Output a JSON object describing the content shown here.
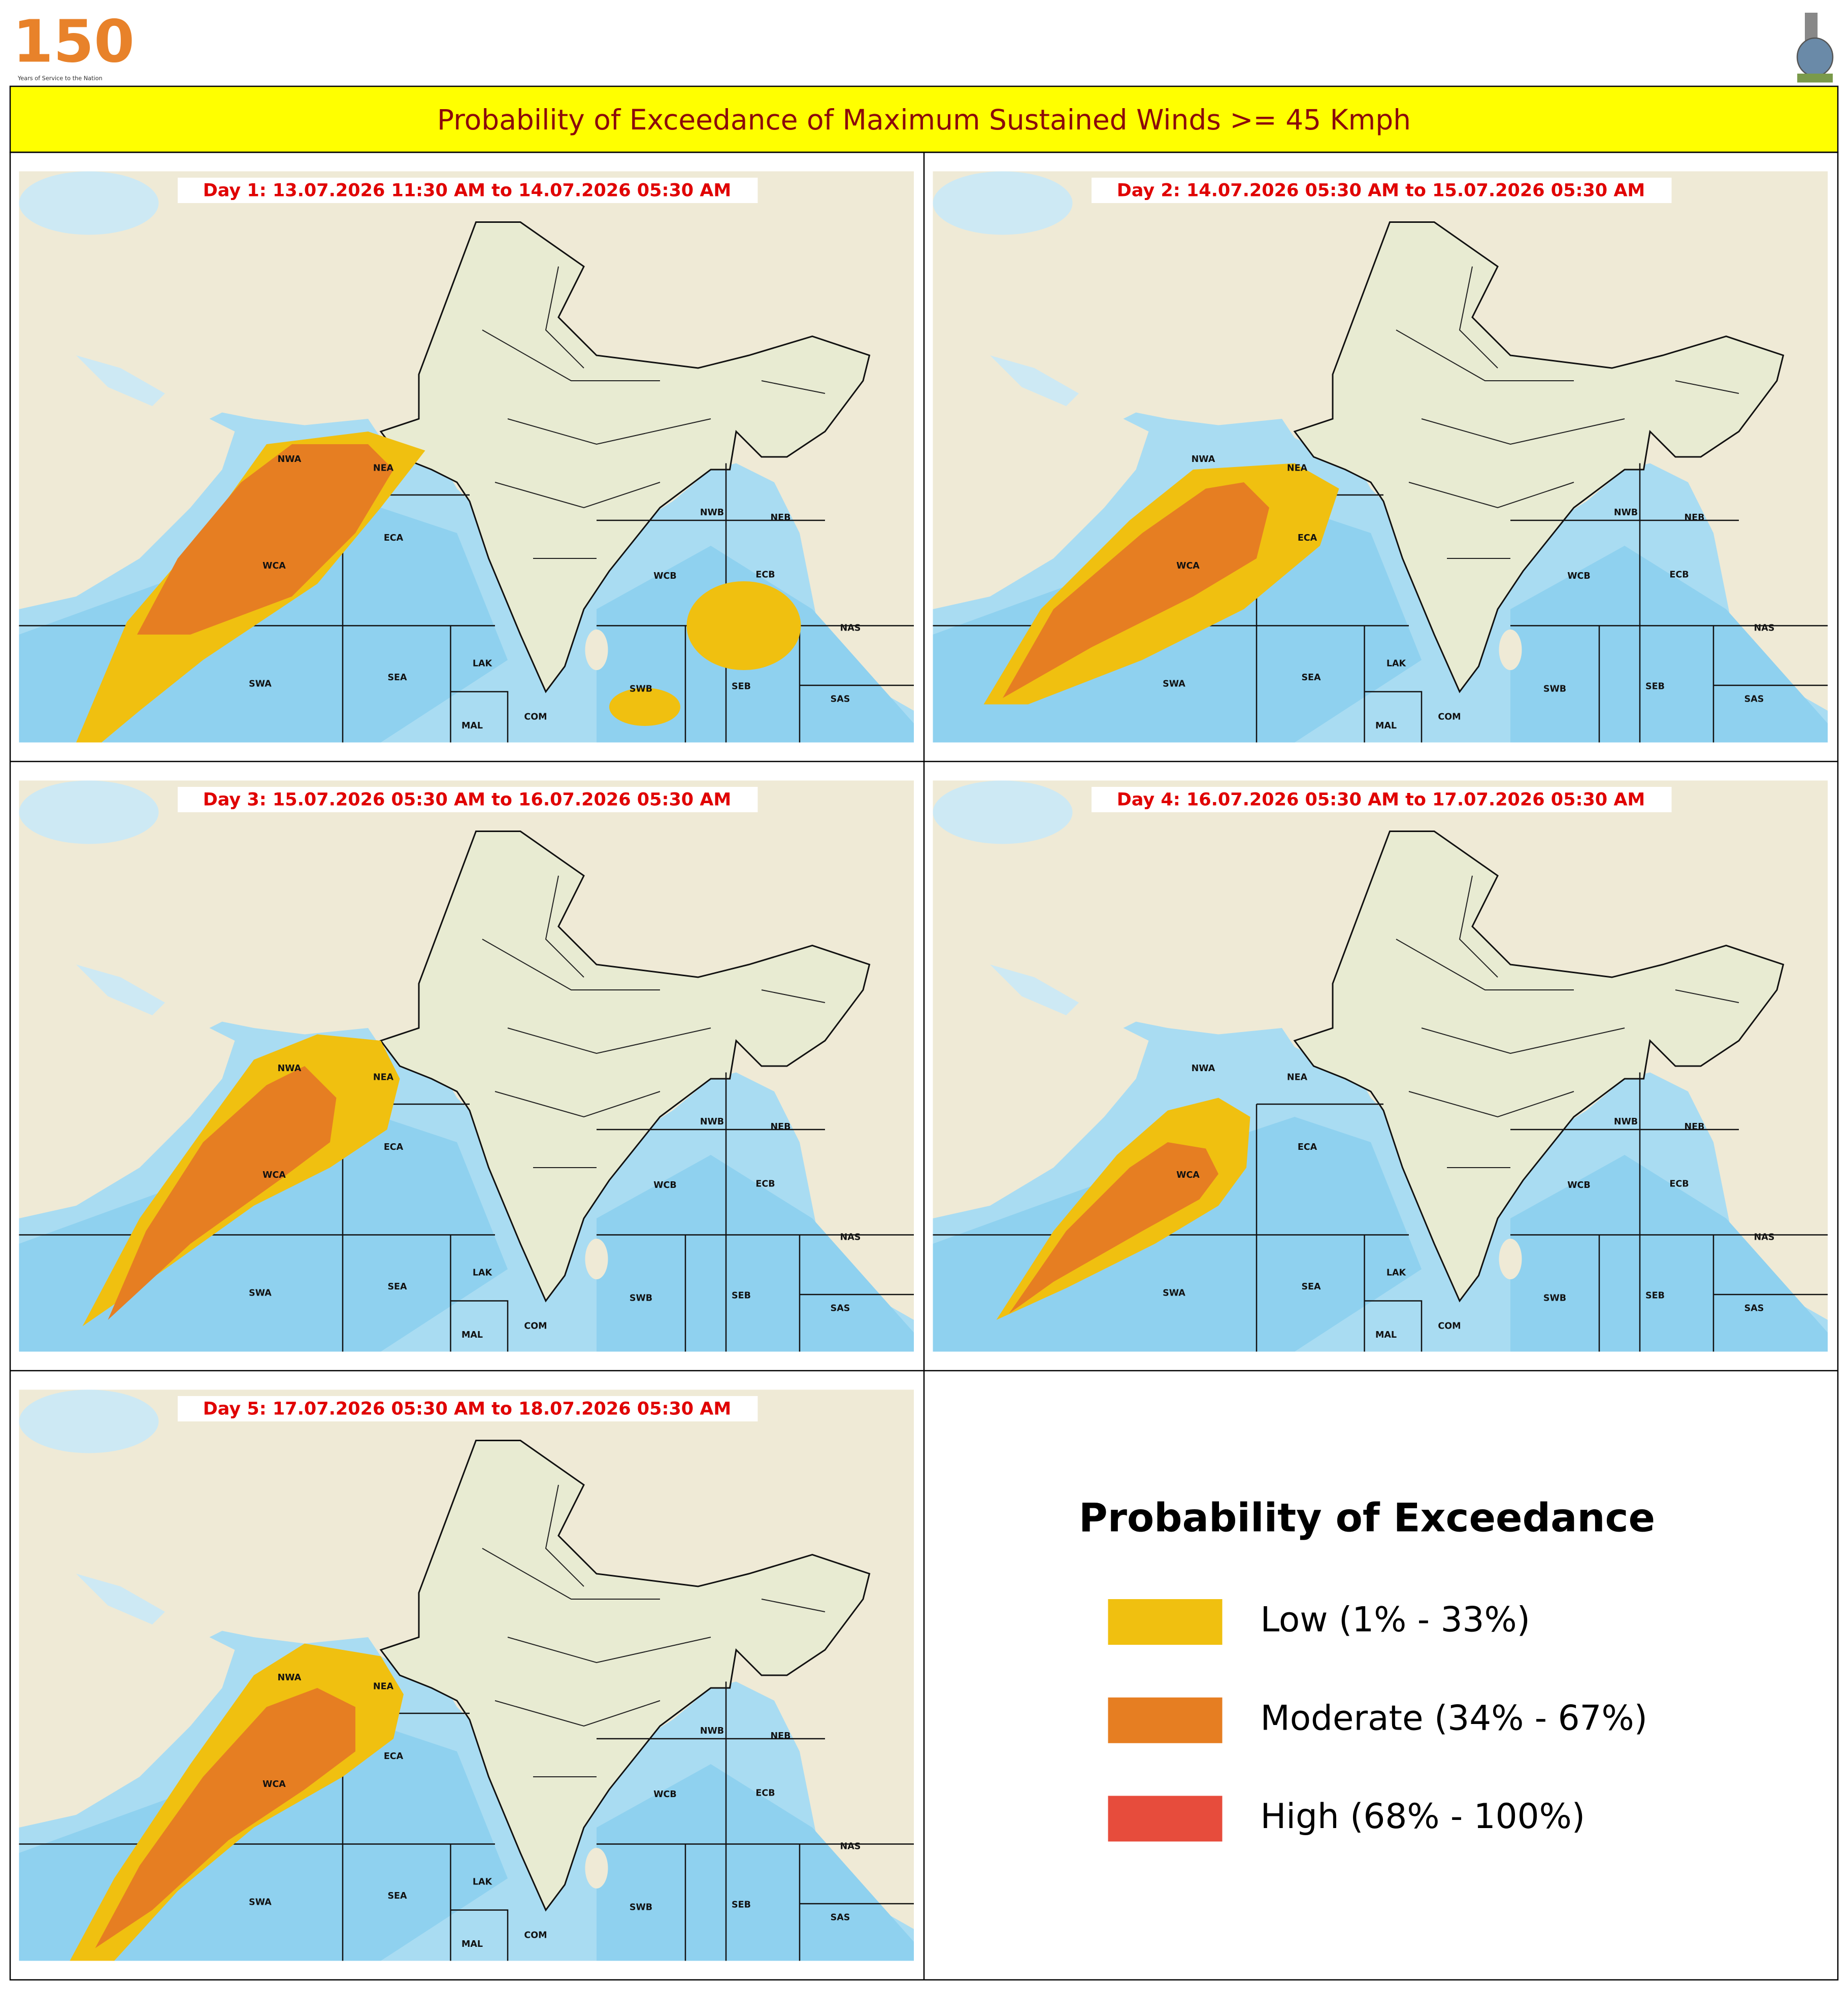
{
  "header": {
    "logo_number": "150",
    "logo_tagline": "Years of Service to the Nation"
  },
  "title": "Probability of Exceedance of Maximum Sustained Winds >= 45 Kmph",
  "panels": [
    {
      "label": "Day 1: 13.07.2026 11:30 AM to 14.07.2026 05:30 AM"
    },
    {
      "label": "Day 2: 14.07.2026 05:30 AM to 15.07.2026 05:30 AM"
    },
    {
      "label": "Day 3: 15.07.2026 05:30 AM to 16.07.2026 05:30 AM"
    },
    {
      "label": "Day 4: 16.07.2026 05:30 AM to 17.07.2026 05:30 AM"
    },
    {
      "label": "Day 5: 17.07.2026 05:30 AM to 18.07.2026 05:30 AM"
    }
  ],
  "regions": [
    "NWA",
    "NEA",
    "ECA",
    "WCA",
    "SWA",
    "SEA",
    "LAK",
    "MAL",
    "COM",
    "NWB",
    "NEB",
    "WCB",
    "ECB",
    "NAS",
    "SAS",
    "SWB",
    "SEB"
  ],
  "legend": {
    "title": "Probability of Exceedance",
    "items": [
      {
        "label": "Low (1% - 33%)",
        "color": "#f0c010"
      },
      {
        "label": "Moderate (34% - 67%)",
        "color": "#e67e22"
      },
      {
        "label": "High (68% - 100%)",
        "color": "#e74c3c"
      }
    ]
  }
}
